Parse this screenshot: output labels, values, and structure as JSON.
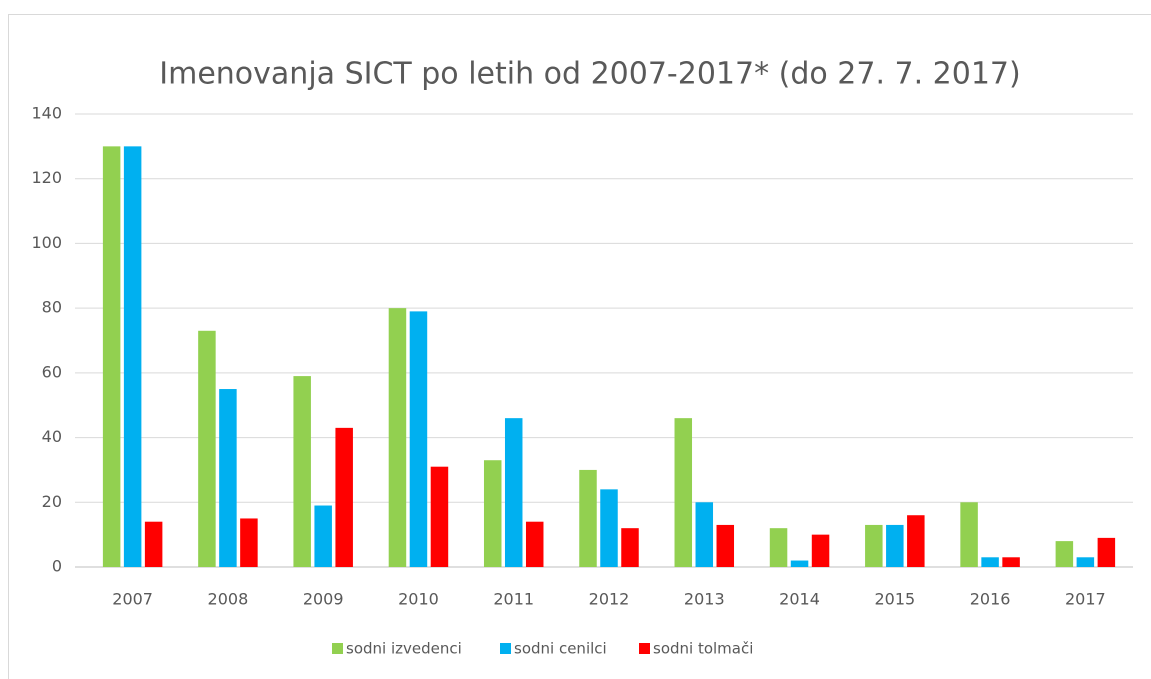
{
  "chart_data": {
    "type": "bar",
    "title": "Imenovanja SICT po letih od 2007-2017* (do 27. 7. 2017)",
    "categories": [
      "2007",
      "2008",
      "2009",
      "2010",
      "2011",
      "2012",
      "2013",
      "2014",
      "2015",
      "2016",
      "2017"
    ],
    "series": [
      {
        "name": "sodni izvedenci",
        "color": "#92d050",
        "values": [
          130,
          73,
          59,
          80,
          33,
          30,
          46,
          12,
          13,
          20,
          8
        ]
      },
      {
        "name": "sodni cenilci",
        "color": "#00b0f0",
        "values": [
          130,
          55,
          19,
          79,
          46,
          24,
          20,
          2,
          13,
          3,
          3
        ]
      },
      {
        "name": "sodni tolmači",
        "color": "#ff0000",
        "values": [
          14,
          15,
          43,
          31,
          14,
          12,
          13,
          10,
          16,
          3,
          9
        ]
      }
    ],
    "ylim": [
      0,
      140
    ],
    "yticks": [
      0,
      20,
      40,
      60,
      80,
      100,
      120,
      140
    ],
    "grid": true,
    "legend": "bottom"
  }
}
